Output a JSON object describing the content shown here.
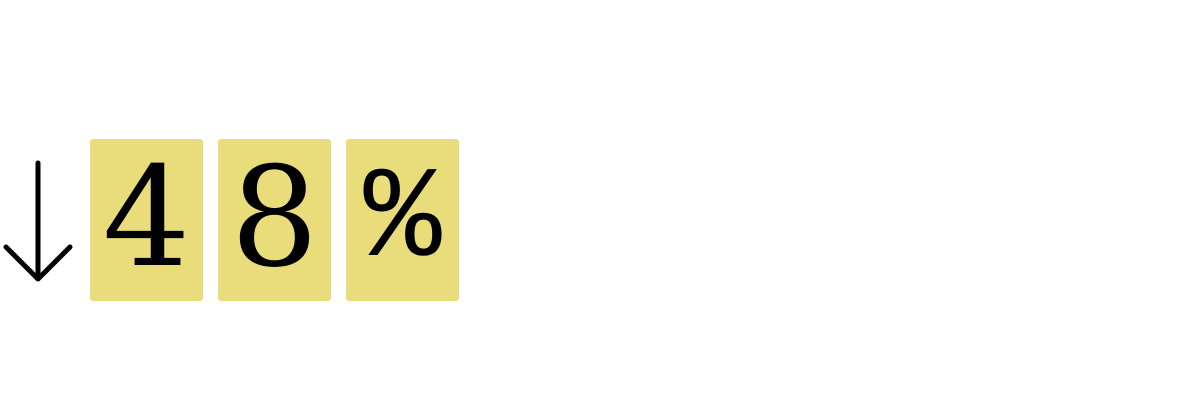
{
  "stat": {
    "direction_icon": "arrow-down-icon",
    "digits": [
      "4",
      "8"
    ],
    "percent_sign": "%"
  },
  "colors": {
    "tile_background": "#e8dd7a",
    "text": "#000000",
    "page_background": "#ffffff"
  }
}
